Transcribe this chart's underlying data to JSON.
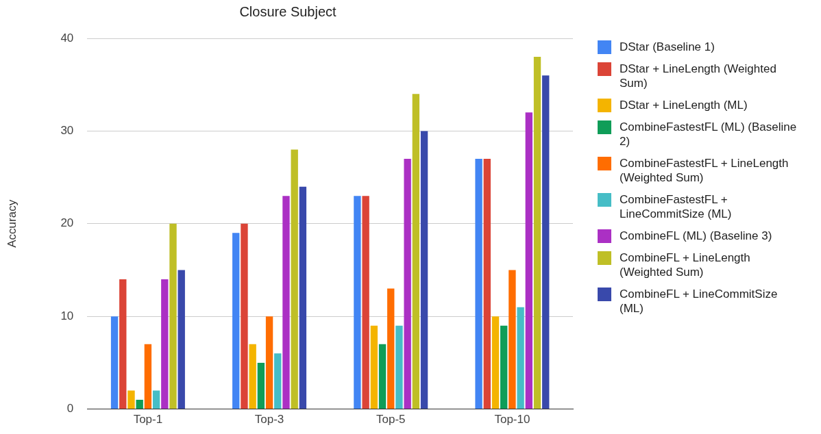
{
  "chart_data": {
    "type": "bar",
    "title": "Closure Subject",
    "ylabel": "Accuracy",
    "categories": [
      "Top-1",
      "Top-3",
      "Top-5",
      "Top-10"
    ],
    "series": [
      {
        "name": "DStar (Baseline 1)",
        "color": "#4285f4",
        "values": [
          10,
          19,
          23,
          27
        ]
      },
      {
        "name": "DStar + LineLength (Weighted Sum)",
        "color": "#db4437",
        "values": [
          14,
          20,
          23,
          27
        ]
      },
      {
        "name": "DStar + LineLength (ML)",
        "color": "#f4b400",
        "values": [
          2,
          7,
          9,
          10
        ]
      },
      {
        "name": "CombineFastestFL (ML) (Baseline 2)",
        "color": "#0f9d58",
        "values": [
          1,
          5,
          7,
          9
        ]
      },
      {
        "name": "CombineFastestFL + LineLength (Weighted Sum)",
        "color": "#ff6d01",
        "values": [
          7,
          10,
          13,
          15
        ]
      },
      {
        "name": "CombineFastestFL + LineCommitSize (ML)",
        "color": "#46bdc6",
        "values": [
          2,
          6,
          9,
          11
        ]
      },
      {
        "name": "CombineFL (ML) (Baseline 3)",
        "color": "#ab30c4",
        "values": [
          14,
          23,
          27,
          32
        ]
      },
      {
        "name": "CombineFL + LineLength (Weighted Sum)",
        "color": "#bfbf26",
        "values": [
          20,
          28,
          34,
          38
        ]
      },
      {
        "name": "CombineFL + LineCommitSize (ML)",
        "color": "#3949ab",
        "values": [
          15,
          24,
          30,
          36
        ]
      }
    ],
    "ylim": [
      0,
      40
    ],
    "yticks": [
      0,
      10,
      20,
      30,
      40
    ],
    "grid": "y",
    "legend": "right"
  }
}
